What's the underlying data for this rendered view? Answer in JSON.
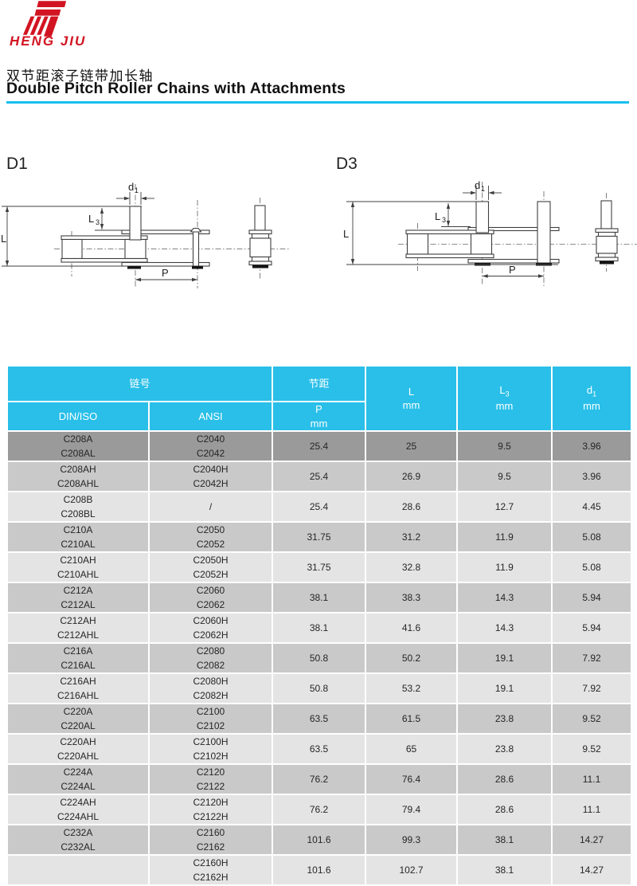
{
  "brand": {
    "name": "HENG JIU"
  },
  "title": {
    "zh": "双节距滚子链带加长轴",
    "en": "Double Pitch Roller Chains with Attachments"
  },
  "diagrams": {
    "d1_label": "D1",
    "d3_label": "D3",
    "dims": {
      "l": "L",
      "p": "P",
      "l3_base": "L",
      "l3_sub": "3",
      "d1_base": "d",
      "d1_sub": "1"
    }
  },
  "table": {
    "header": {
      "chain_no": "链号",
      "pitch": "节距",
      "din_iso": "DIN/ISO",
      "ansi": "ANSI",
      "p_base": "P",
      "p_unit": "mm",
      "l_base": "L",
      "l_unit": "mm",
      "l3_base": "L",
      "l3_sub": "3",
      "l3_unit": "mm",
      "d1_base": "d",
      "d1_sub": "1",
      "d1_unit": "mm"
    },
    "rows": [
      {
        "din": [
          "C208A",
          "C208AL"
        ],
        "ansi": [
          "C2040",
          "C2042"
        ],
        "p": "25.4",
        "l": "25",
        "l3": "9.5",
        "d1": "3.96",
        "shade": "dark"
      },
      {
        "din": [
          "C208AH",
          "C208AHL"
        ],
        "ansi": [
          "C2040H",
          "C2042H"
        ],
        "p": "25.4",
        "l": "26.9",
        "l3": "9.5",
        "d1": "3.96",
        "shade": "medium"
      },
      {
        "din": [
          "C208B",
          "C208BL"
        ],
        "ansi": [
          "/"
        ],
        "p": "25.4",
        "l": "28.6",
        "l3": "12.7",
        "d1": "4.45",
        "shade": "light"
      },
      {
        "din": [
          "C210A",
          "C210AL"
        ],
        "ansi": [
          "C2050",
          "C2052"
        ],
        "p": "31.75",
        "l": "31.2",
        "l3": "11.9",
        "d1": "5.08",
        "shade": "medium"
      },
      {
        "din": [
          "C210AH",
          "C210AHL"
        ],
        "ansi": [
          "C2050H",
          "C2052H"
        ],
        "p": "31.75",
        "l": "32.8",
        "l3": "11.9",
        "d1": "5.08",
        "shade": "light"
      },
      {
        "din": [
          "C212A",
          "C212AL"
        ],
        "ansi": [
          "C2060",
          "C2062"
        ],
        "p": "38.1",
        "l": "38.3",
        "l3": "14.3",
        "d1": "5.94",
        "shade": "medium"
      },
      {
        "din": [
          "C212AH",
          "C212AHL"
        ],
        "ansi": [
          "C2060H",
          "C2062H"
        ],
        "p": "38.1",
        "l": "41.6",
        "l3": "14.3",
        "d1": "5.94",
        "shade": "light"
      },
      {
        "din": [
          "C216A",
          "C216AL"
        ],
        "ansi": [
          "C2080",
          "C2082"
        ],
        "p": "50.8",
        "l": "50.2",
        "l3": "19.1",
        "d1": "7.92",
        "shade": "medium"
      },
      {
        "din": [
          "C216AH",
          "C216AHL"
        ],
        "ansi": [
          "C2080H",
          "C2082H"
        ],
        "p": "50.8",
        "l": "53.2",
        "l3": "19.1",
        "d1": "7.92",
        "shade": "light"
      },
      {
        "din": [
          "C220A",
          "C220AL"
        ],
        "ansi": [
          "C2100",
          "C2102"
        ],
        "p": "63.5",
        "l": "61.5",
        "l3": "23.8",
        "d1": "9.52",
        "shade": "medium"
      },
      {
        "din": [
          "C220AH",
          "C220AHL"
        ],
        "ansi": [
          "C2100H",
          "C2102H"
        ],
        "p": "63.5",
        "l": "65",
        "l3": "23.8",
        "d1": "9.52",
        "shade": "light"
      },
      {
        "din": [
          "C224A",
          "C224AL"
        ],
        "ansi": [
          "C2120",
          "C2122"
        ],
        "p": "76.2",
        "l": "76.4",
        "l3": "28.6",
        "d1": "11.1",
        "shade": "medium"
      },
      {
        "din": [
          "C224AH",
          "C224AHL"
        ],
        "ansi": [
          "C2120H",
          "C2122H"
        ],
        "p": "76.2",
        "l": "79.4",
        "l3": "28.6",
        "d1": "11.1",
        "shade": "light"
      },
      {
        "din": [
          "C232A",
          "C232AL"
        ],
        "ansi": [
          "C2160",
          "C2162"
        ],
        "p": "101.6",
        "l": "99.3",
        "l3": "38.1",
        "d1": "14.27",
        "shade": "medium"
      },
      {
        "din": [
          ""
        ],
        "ansi": [
          "C2160H",
          "C2162H"
        ],
        "p": "101.6",
        "l": "102.7",
        "l3": "38.1",
        "d1": "14.27",
        "shade": "light"
      }
    ]
  },
  "colors": {
    "header_bg": "#29bfe8",
    "row_dark": "#9a9a9a",
    "row_medium": "#c9c9c9",
    "row_light": "#e4e4e4",
    "accent_line": "#17c0ef",
    "brand_red": "#d21422",
    "text_dark": "#1c1c1c"
  }
}
